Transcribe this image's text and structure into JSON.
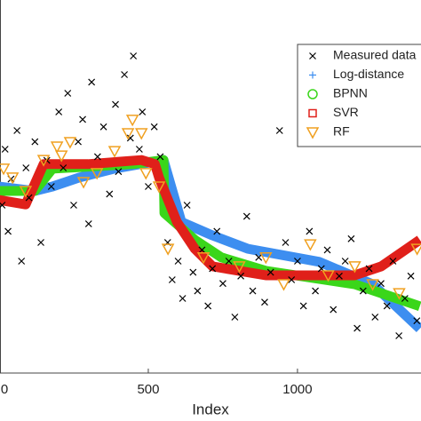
{
  "chart_data": {
    "type": "scatter",
    "xlabel": "Index",
    "xlim": [
      0,
      1414
    ],
    "xticks": [
      0,
      500,
      1000
    ],
    "ylim": [
      0,
      100
    ],
    "legend": "upper right",
    "series": [
      {
        "name": "Measured data",
        "color": "#000000",
        "marker": "x",
        "style": "scatter",
        "x": [
          10,
          20,
          30,
          40,
          60,
          75,
          90,
          100,
          120,
          140,
          160,
          175,
          200,
          215,
          230,
          250,
          265,
          280,
          300,
          310,
          330,
          350,
          370,
          390,
          400,
          420,
          440,
          450,
          470,
          480,
          500,
          520,
          540,
          565,
          580,
          600,
          615,
          630,
          650,
          665,
          680,
          700,
          715,
          730,
          750,
          770,
          790,
          810,
          830,
          850,
          870,
          890,
          910,
          940,
          960,
          980,
          1000,
          1020,
          1040,
          1060,
          1080,
          1100,
          1120,
          1140,
          1160,
          1180,
          1200,
          1220,
          1240,
          1260,
          1280,
          1300,
          1320,
          1340,
          1360,
          1380,
          1400
        ],
        "values": [
          45,
          60,
          38,
          52,
          65,
          30,
          55,
          47,
          62,
          35,
          57,
          50,
          70,
          55,
          75,
          45,
          62,
          68,
          40,
          78,
          58,
          66,
          48,
          72,
          54,
          80,
          63,
          85,
          60,
          70,
          50,
          66,
          58,
          35,
          25,
          30,
          20,
          45,
          27,
          22,
          33,
          18,
          28,
          38,
          24,
          30,
          15,
          26,
          42,
          22,
          31,
          19,
          27,
          65,
          35,
          25,
          30,
          18,
          38,
          22,
          28,
          33,
          17,
          26,
          30,
          36,
          12,
          22,
          28,
          15,
          24,
          18,
          30,
          10,
          20,
          26,
          14
        ]
      },
      {
        "name": "Log-distance",
        "color": "#3d8ef0",
        "marker": "+",
        "style": "line",
        "x": [
          0,
          119,
          179,
          268,
          387,
          551,
          611,
          715,
          834,
          1073,
          1252,
          1410
        ],
        "values": [
          50,
          48.8,
          50,
          52.4,
          54.8,
          57.1,
          40.5,
          36.9,
          33.3,
          29.8,
          23.8,
          11.9
        ]
      },
      {
        "name": "BPNN",
        "color": "#3ad61a",
        "marker": "o",
        "style": "line",
        "x": [
          0,
          119,
          179,
          447,
          551,
          554,
          656,
          745,
          894,
          1192,
          1410
        ],
        "values": [
          48.8,
          48.8,
          54.8,
          56.0,
          57.1,
          42.9,
          35.7,
          31.0,
          27.4,
          23.8,
          17.9
        ]
      },
      {
        "name": "SVR",
        "color": "#e0201a",
        "marker": "s",
        "style": "line",
        "x": [
          0,
          89,
          149,
          298,
          477,
          522,
          536,
          596,
          656,
          715,
          894,
          1192,
          1281,
          1410
        ],
        "values": [
          46.4,
          45.2,
          56.0,
          56.0,
          57.1,
          56.0,
          52.4,
          40.5,
          33.3,
          28.6,
          26.2,
          26.2,
          28.6,
          35.7
        ]
      },
      {
        "name": "RF",
        "color": "#f0a020",
        "marker": "v",
        "style": "scatter",
        "x": [
          15,
          45,
          89,
          149,
          194,
          209,
          238,
          283,
          328,
          387,
          432,
          447,
          477,
          492,
          536,
          566,
          685,
          805,
          894,
          954,
          1043,
          1103,
          1192,
          1252,
          1341,
          1401
        ],
        "values": [
          54.8,
          52.4,
          48.8,
          57.1,
          60.7,
          58.3,
          61.9,
          51.2,
          53.6,
          59.5,
          64.3,
          67.9,
          64.3,
          53.6,
          50,
          33.3,
          31,
          28.6,
          31,
          23.8,
          34.5,
          26.2,
          28.6,
          23.8,
          21.4,
          33.3
        ]
      }
    ]
  }
}
